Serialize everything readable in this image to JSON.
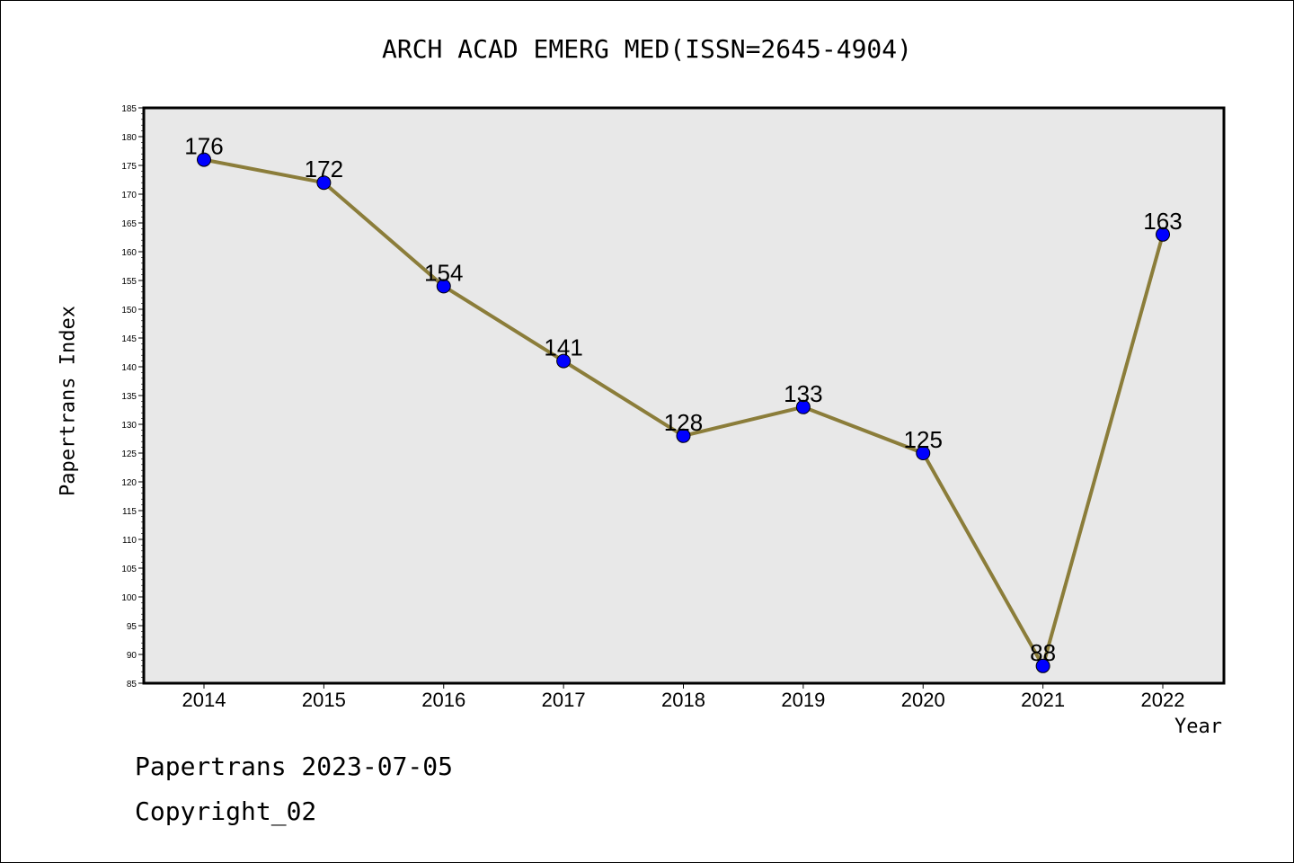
{
  "chart_data": {
    "type": "line",
    "title": "ARCH ACAD EMERG MED(ISSN=2645-4904)",
    "xlabel": "Year",
    "ylabel": "Papertrans Index",
    "categories": [
      "2014",
      "2015",
      "2016",
      "2017",
      "2018",
      "2019",
      "2020",
      "2021",
      "2022"
    ],
    "series": [
      {
        "values": [
          176,
          172,
          154,
          141,
          128,
          133,
          125,
          88,
          163
        ]
      }
    ],
    "ylim": [
      85,
      185
    ],
    "ytick_step": 5,
    "grid": false,
    "line_color": "#8b7d3a",
    "marker_color": "#0000ff",
    "plot_background": "#e8e8e8",
    "data_labels": true
  },
  "footer": {
    "line1": "Papertrans 2023-07-05",
    "line2": "Copyright_02"
  }
}
